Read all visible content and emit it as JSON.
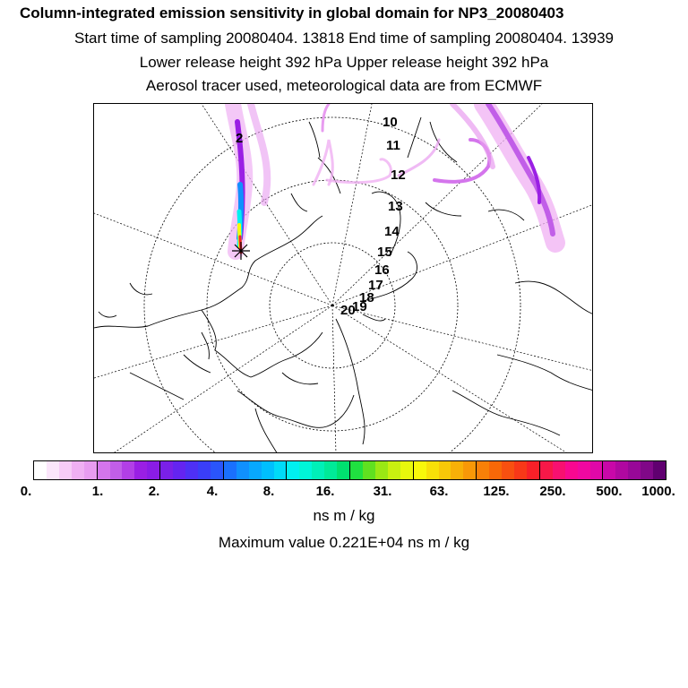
{
  "header": {
    "title": "Column-integrated emission sensitivity in global domain for NP3_20080403",
    "line2": "Start time of sampling 20080404. 13818      End time of sampling 20080404. 13939",
    "line3": "Lower release height  392 hPa        Upper release height  392 hPa",
    "line4": "Aerosol tracer used, meteorological data are from ECMWF"
  },
  "map": {
    "hour_labels": [
      "10",
      "11",
      "12",
      "13",
      "14",
      "15",
      "16",
      "17",
      "18",
      "19",
      "20",
      "2"
    ],
    "release_marker": "release-location-star"
  },
  "colorbar": {
    "ticks": [
      "0.",
      "1.",
      "2.",
      "4.",
      "8.",
      "16.",
      "31.",
      "63.",
      "125.",
      "250.",
      "500.",
      "1000."
    ],
    "colors": [
      "#ffffff",
      "#fbe6fb",
      "#f7ccf7",
      "#f0b0f3",
      "#e89cf0",
      "#d475ec",
      "#c15ee8",
      "#b23fe6",
      "#9a1fe4",
      "#8a1ce6",
      "#7a20e8",
      "#6424f0",
      "#4e30f5",
      "#3a3ef8",
      "#2a55fb",
      "#1a70fd",
      "#1090fd",
      "#08a8fd",
      "#00bffd",
      "#00dbf8",
      "#00f0f0",
      "#00f5d8",
      "#00f0b8",
      "#00ea98",
      "#00e070",
      "#20e040",
      "#60e020",
      "#9ae814",
      "#c8f010",
      "#e8f80c",
      "#f8f80a",
      "#f8e008",
      "#f8c808",
      "#f8b008",
      "#f89808",
      "#f88008",
      "#f86808",
      "#f85010",
      "#f83818",
      "#f82028",
      "#f81848",
      "#f81070",
      "#f80890",
      "#f008a0",
      "#e008a8",
      "#c808a8",
      "#b008a0",
      "#980898",
      "#800888",
      "#600070"
    ],
    "unit": "ns m / kg"
  },
  "footer": {
    "max_value": "Maximum value  0.221E+04 ns m / kg"
  }
}
